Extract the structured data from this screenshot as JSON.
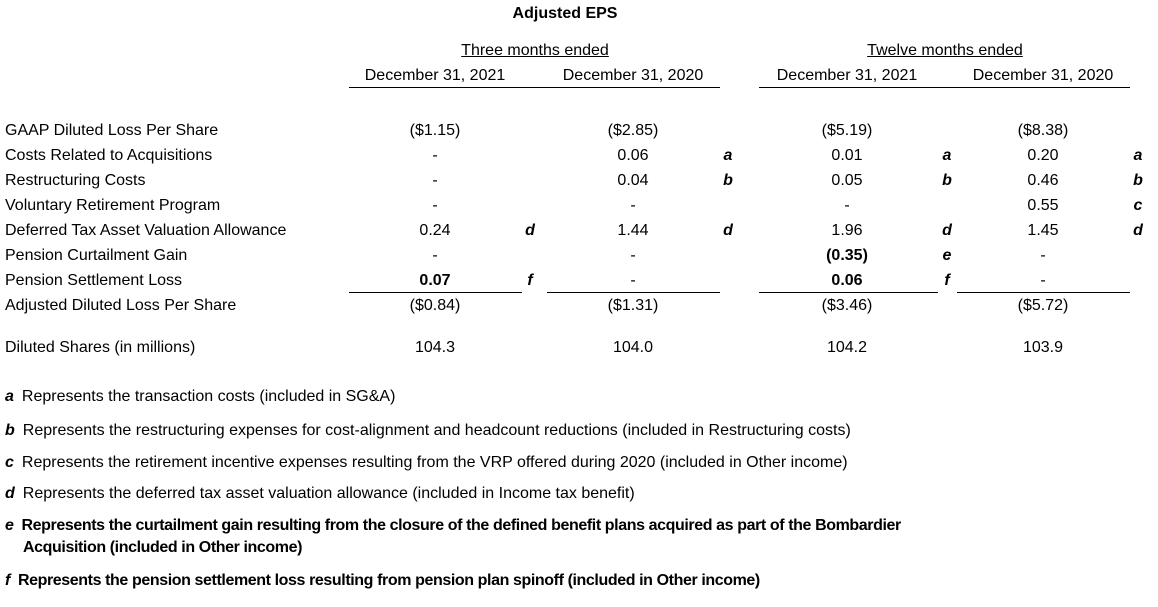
{
  "title": "Adjusted EPS",
  "groups": [
    "Three months ended",
    "Twelve months ended"
  ],
  "dates": [
    "December 31, 2021",
    "December 31, 2020",
    "December 31, 2021",
    "December 31, 2020"
  ],
  "rows": [
    {
      "label": "GAAP Diluted Loss Per Share",
      "values": [
        "($1.15)",
        "($2.85)",
        "($5.19)",
        "($8.38)"
      ],
      "notes": [
        "",
        "",
        "",
        ""
      ],
      "bold": [
        false,
        false,
        false,
        false
      ]
    },
    {
      "label": "Costs Related to Acquisitions",
      "values": [
        "-",
        "0.06",
        "0.01",
        "0.20"
      ],
      "notes": [
        "",
        "a",
        "a",
        "a"
      ],
      "bold": [
        false,
        false,
        false,
        false
      ]
    },
    {
      "label": "Restructuring Costs",
      "values": [
        "-",
        "0.04",
        "0.05",
        "0.46"
      ],
      "notes": [
        "",
        "b",
        "b",
        "b"
      ],
      "bold": [
        false,
        false,
        false,
        false
      ]
    },
    {
      "label": "Voluntary Retirement Program",
      "values": [
        "-",
        "-",
        "-",
        "0.55"
      ],
      "notes": [
        "",
        "",
        "",
        "c"
      ],
      "bold": [
        false,
        false,
        false,
        false
      ]
    },
    {
      "label": "Deferred Tax Asset Valuation Allowance",
      "values": [
        "0.24",
        "1.44",
        "1.96",
        "1.45"
      ],
      "notes": [
        "d",
        "d",
        "d",
        "d"
      ],
      "bold": [
        false,
        false,
        false,
        false
      ]
    },
    {
      "label": "Pension Curtailment Gain",
      "values": [
        "-",
        "-",
        "(0.35)",
        "-"
      ],
      "notes": [
        "",
        "",
        "e",
        ""
      ],
      "bold": [
        false,
        false,
        true,
        false
      ]
    },
    {
      "label": "Pension Settlement Loss",
      "values": [
        "0.07",
        "-",
        "0.06",
        "-"
      ],
      "notes": [
        "f",
        "",
        "f",
        ""
      ],
      "bold": [
        true,
        false,
        true,
        false
      ]
    },
    {
      "label": "Adjusted Diluted Loss Per Share",
      "values": [
        "($0.84)",
        "($1.31)",
        "($3.46)",
        "($5.72)"
      ],
      "notes": [
        "",
        "",
        "",
        ""
      ],
      "bold": [
        false,
        false,
        false,
        false
      ]
    },
    {
      "label": "Diluted Shares (in millions)",
      "values": [
        "104.3",
        "104.0",
        "104.2",
        "103.9"
      ],
      "notes": [
        "",
        "",
        "",
        ""
      ],
      "bold": [
        false,
        false,
        false,
        false
      ]
    }
  ],
  "footnotes": [
    {
      "key": "a",
      "text": "Represents the transaction costs (included in SG&A)"
    },
    {
      "key": "b",
      "text": "Represents the restructuring expenses for cost-alignment and headcount reductions (included in Restructuring costs)"
    },
    {
      "key": "c",
      "text": "Represents the retirement incentive expenses resulting from the VRP offered during 2020 (included in Other income)"
    },
    {
      "key": "d",
      "text": "Represents the deferred tax asset valuation allowance (included in Income tax benefit)"
    },
    {
      "key": "e",
      "text": "Represents the curtailment gain resulting from the closure of the defined benefit plans acquired as part of the Bombardier",
      "text2": "Acquisition (included in Other income)"
    },
    {
      "key": "f",
      "text": "Represents the pension settlement loss resulting from pension plan spinoff (included in Other income)"
    }
  ]
}
